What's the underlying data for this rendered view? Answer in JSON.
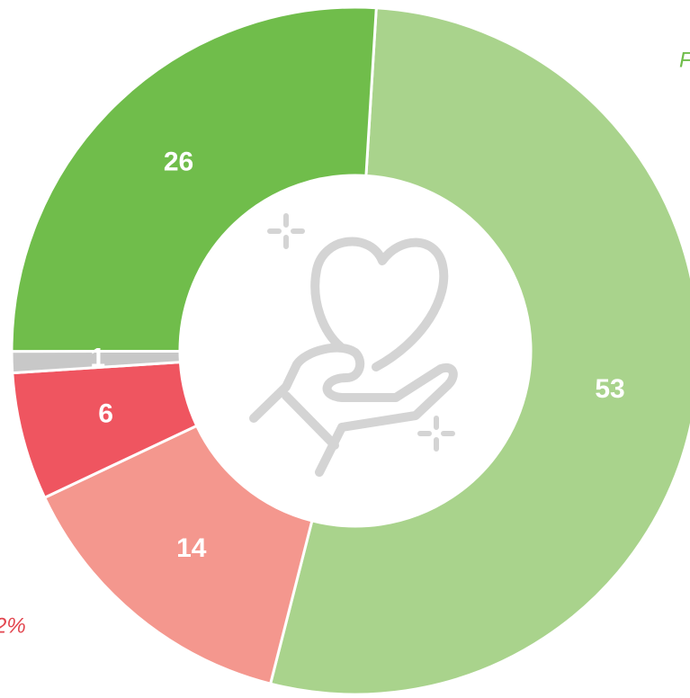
{
  "chart_data": {
    "type": "donut",
    "categories": [
      null,
      null,
      null,
      null,
      null
    ],
    "values": [
      53,
      14,
      6,
      1,
      26
    ],
    "colors": [
      "#a9d38c",
      "#f4978e",
      "#ef5560",
      "#c8c8c8",
      "#70bd4b"
    ],
    "annotations": [
      {
        "text": "F",
        "color": "#70bd4b"
      },
      {
        "text": "2%",
        "color": "#e2464f"
      }
    ]
  }
}
